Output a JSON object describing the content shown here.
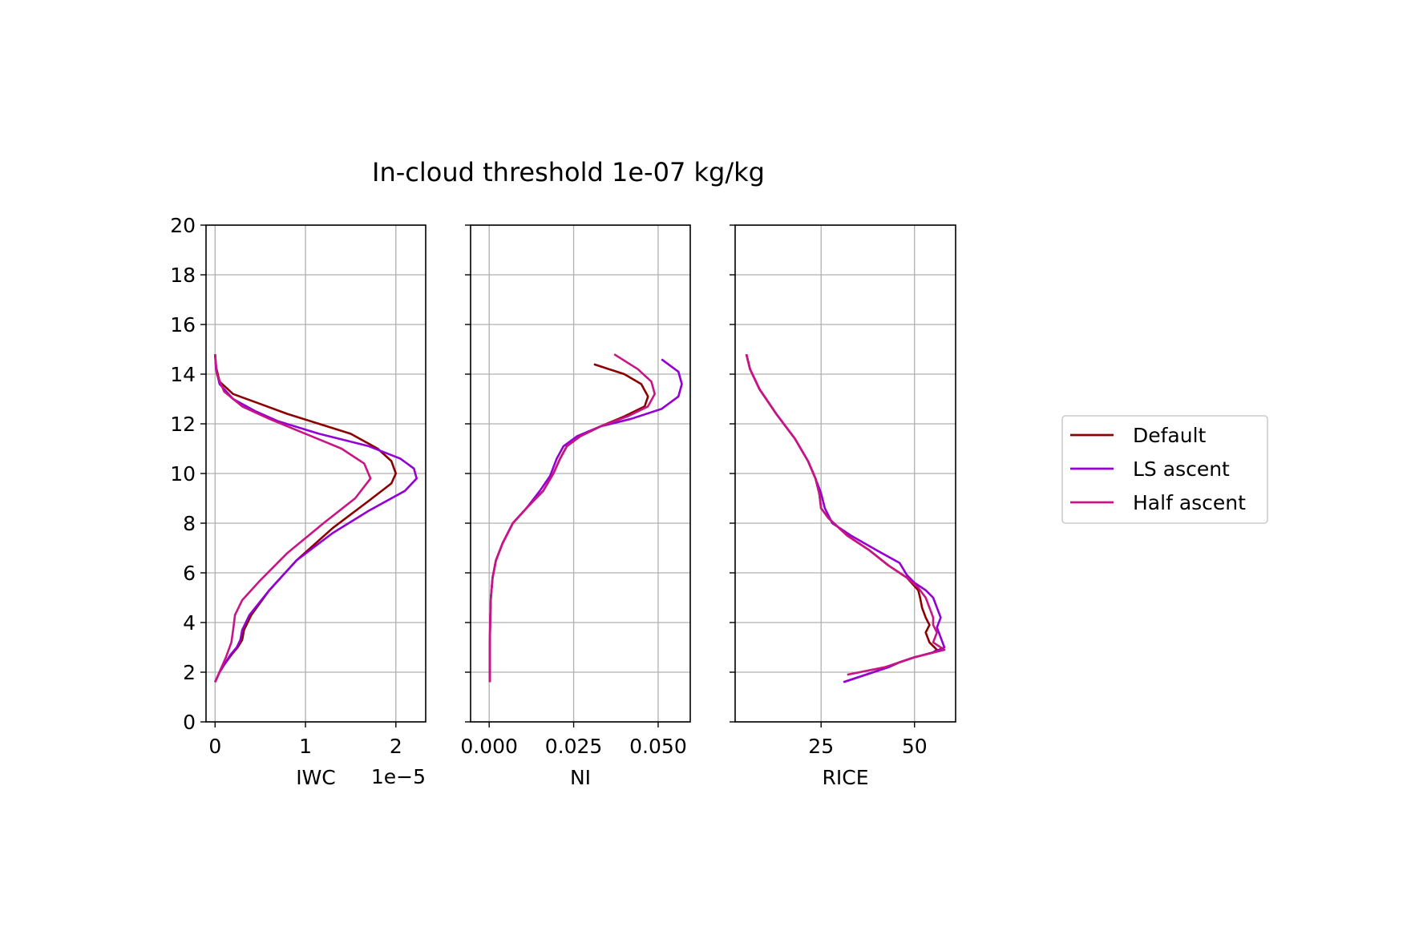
{
  "figure": {
    "title": "In-cloud threshold 1e-07 kg/kg"
  },
  "colors": {
    "Default": "#8b0000",
    "LS ascent": "#9400d3",
    "Half ascent": "#c71585",
    "grid": "#b0b0b0",
    "axes": "#000000"
  },
  "legend": {
    "placement": "right-outside",
    "entries": [
      "Default",
      "LS ascent",
      "Half ascent"
    ]
  },
  "chart_data": [
    {
      "type": "line",
      "xlabel": "IWC",
      "offset_text": "1e−5",
      "ylabel": "",
      "xlim": [
        -1e-06,
        2.33e-05
      ],
      "ylim": [
        0,
        20
      ],
      "x_ticks": [
        0,
        1e-05,
        2e-05
      ],
      "x_tick_labels": [
        "0",
        "1",
        "2"
      ],
      "y_ticks": [
        0,
        2,
        4,
        6,
        8,
        10,
        12,
        14,
        16,
        18,
        20
      ],
      "y_tick_labels": [
        "0",
        "2",
        "4",
        "6",
        "8",
        "10",
        "12",
        "14",
        "16",
        "18",
        "20"
      ],
      "grid": true,
      "series": [
        {
          "name": "Default",
          "x": [
            0,
            5e-07,
            1e-06,
            1.8e-06,
            2.5e-06,
            3e-06,
            3.2e-06,
            4e-06,
            6e-06,
            9e-06,
            1.3e-05,
            1.7e-05,
            1.95e-05,
            2e-05,
            1.95e-05,
            1.8e-05,
            1.5e-05,
            1.15e-05,
            8e-06,
            5e-06,
            2e-06,
            5e-07,
            1e-07,
            0.0
          ],
          "y": [
            1.6,
            2.0,
            2.3,
            2.7,
            3.0,
            3.3,
            3.7,
            4.3,
            5.3,
            6.5,
            7.8,
            8.9,
            9.6,
            10.0,
            10.5,
            11.0,
            11.6,
            12.0,
            12.4,
            12.8,
            13.2,
            13.7,
            14.3,
            14.8
          ]
        },
        {
          "name": "LS ascent",
          "x": [
            0,
            5e-07,
            1e-06,
            1.7e-06,
            2.4e-06,
            2.8e-06,
            3e-06,
            3.8e-06,
            6e-06,
            9e-06,
            1.3e-05,
            1.7e-05,
            2.1e-05,
            2.23e-05,
            2.2e-05,
            2.05e-05,
            1.7e-05,
            1.15e-05,
            7e-06,
            4.5e-06,
            2e-06,
            5e-07,
            1e-07,
            0.0
          ],
          "y": [
            1.6,
            2.0,
            2.3,
            2.7,
            3.0,
            3.3,
            3.7,
            4.3,
            5.3,
            6.5,
            7.6,
            8.5,
            9.3,
            9.8,
            10.2,
            10.6,
            11.1,
            11.6,
            12.1,
            12.5,
            13.0,
            13.6,
            14.2,
            14.8
          ]
        },
        {
          "name": "Half ascent",
          "x": [
            0,
            6e-07,
            1.2e-06,
            1.8e-06,
            2e-06,
            2.2e-06,
            3e-06,
            5e-06,
            8e-06,
            1.2e-05,
            1.55e-05,
            1.72e-05,
            1.65e-05,
            1.4e-05,
            1e-05,
            6e-06,
            3e-06,
            1e-06,
            2e-07,
            0.0
          ],
          "y": [
            1.6,
            2.1,
            2.6,
            3.2,
            3.7,
            4.3,
            4.9,
            5.7,
            6.8,
            8.0,
            9.0,
            9.8,
            10.4,
            11.0,
            11.6,
            12.2,
            12.7,
            13.3,
            14.0,
            14.8
          ]
        }
      ]
    },
    {
      "type": "line",
      "xlabel": "NI",
      "ylabel": "",
      "xlim": [
        -0.0055,
        0.0595
      ],
      "ylim": [
        0,
        20
      ],
      "x_ticks": [
        0,
        0.025,
        0.05
      ],
      "x_tick_labels": [
        "0.000",
        "0.025",
        "0.050"
      ],
      "y_ticks": [
        0,
        2,
        4,
        6,
        8,
        10,
        12,
        14,
        16,
        18,
        20
      ],
      "grid": true,
      "series": [
        {
          "name": "Default",
          "x": [
            0.0002,
            0.0002,
            0.0003,
            0.0005,
            0.001,
            0.002,
            0.004,
            0.007,
            0.011,
            0.016,
            0.019,
            0.021,
            0.023,
            0.027,
            0.033,
            0.04,
            0.046,
            0.047,
            0.045,
            0.04,
            0.031
          ],
          "y": [
            1.6,
            3.0,
            4.0,
            5.0,
            5.8,
            6.5,
            7.2,
            8.0,
            8.6,
            9.3,
            10.0,
            10.6,
            11.1,
            11.5,
            11.9,
            12.3,
            12.7,
            13.1,
            13.6,
            14.0,
            14.4
          ]
        },
        {
          "name": "LS ascent",
          "x": [
            0.0002,
            0.0002,
            0.0003,
            0.0005,
            0.001,
            0.002,
            0.004,
            0.007,
            0.011,
            0.015,
            0.018,
            0.02,
            0.022,
            0.026,
            0.033,
            0.042,
            0.051,
            0.056,
            0.057,
            0.056,
            0.051
          ],
          "y": [
            1.6,
            3.0,
            4.0,
            5.0,
            5.8,
            6.5,
            7.2,
            8.0,
            8.6,
            9.3,
            9.9,
            10.6,
            11.1,
            11.5,
            11.9,
            12.2,
            12.6,
            13.1,
            13.6,
            14.1,
            14.6
          ]
        },
        {
          "name": "Half ascent",
          "x": [
            0.0002,
            0.0002,
            0.0003,
            0.0005,
            0.001,
            0.002,
            0.004,
            0.007,
            0.011,
            0.016,
            0.019,
            0.021,
            0.023,
            0.027,
            0.033,
            0.041,
            0.047,
            0.049,
            0.048,
            0.044,
            0.037
          ],
          "y": [
            1.6,
            3.0,
            4.0,
            5.0,
            5.8,
            6.5,
            7.2,
            8.0,
            8.6,
            9.3,
            10.0,
            10.6,
            11.1,
            11.5,
            11.9,
            12.3,
            12.7,
            13.2,
            13.7,
            14.2,
            14.8
          ]
        }
      ]
    },
    {
      "type": "line",
      "xlabel": "RICE",
      "ylabel": "",
      "xlim": [
        2,
        61
      ],
      "ylim": [
        0,
        20
      ],
      "x_ticks": [
        25,
        50
      ],
      "x_tick_labels": [
        "25",
        "50"
      ],
      "y_ticks": [
        0,
        2,
        4,
        6,
        8,
        10,
        12,
        14,
        16,
        18,
        20
      ],
      "grid": true,
      "series": [
        {
          "name": "Default",
          "x": [
            5.0,
            6.0,
            8.5,
            13,
            18,
            21.5,
            23.5,
            24.5,
            25,
            27,
            32,
            38,
            43,
            48,
            51,
            51.5,
            52,
            53,
            54,
            53,
            54,
            56,
            55,
            50,
            46,
            43,
            31
          ],
          "y": [
            14.8,
            14.2,
            13.4,
            12.4,
            11.4,
            10.5,
            9.8,
            9.2,
            8.6,
            8.2,
            7.5,
            6.9,
            6.3,
            5.8,
            5.3,
            5.0,
            4.6,
            4.2,
            3.9,
            3.6,
            3.2,
            2.9,
            2.8,
            2.6,
            2.4,
            2.2,
            1.6
          ]
        },
        {
          "name": "LS ascent",
          "x": [
            5.0,
            6.0,
            8.5,
            13,
            18,
            21.5,
            23.5,
            25,
            26,
            28,
            33,
            40,
            46,
            48,
            50,
            53,
            55,
            56,
            57,
            56,
            58,
            55,
            50,
            46,
            43,
            31
          ],
          "y": [
            14.8,
            14.2,
            13.4,
            12.4,
            11.4,
            10.5,
            9.8,
            9.2,
            8.6,
            8.0,
            7.5,
            6.9,
            6.4,
            5.9,
            5.6,
            5.3,
            5.0,
            4.6,
            4.2,
            3.8,
            3.0,
            2.8,
            2.6,
            2.4,
            2.2,
            1.6
          ]
        },
        {
          "name": "Half ascent",
          "x": [
            5.0,
            6.0,
            8.5,
            13,
            18,
            21.5,
            23.5,
            24.5,
            25,
            27,
            32,
            38,
            43,
            48,
            51,
            53,
            54,
            55,
            55,
            56,
            55,
            58,
            50,
            42,
            32
          ],
          "y": [
            14.8,
            14.2,
            13.4,
            12.4,
            11.4,
            10.5,
            9.8,
            9.2,
            8.6,
            8.2,
            7.5,
            6.9,
            6.3,
            5.8,
            5.4,
            5.0,
            4.6,
            4.2,
            3.9,
            3.6,
            3.2,
            2.9,
            2.6,
            2.2,
            1.9
          ]
        }
      ]
    }
  ]
}
